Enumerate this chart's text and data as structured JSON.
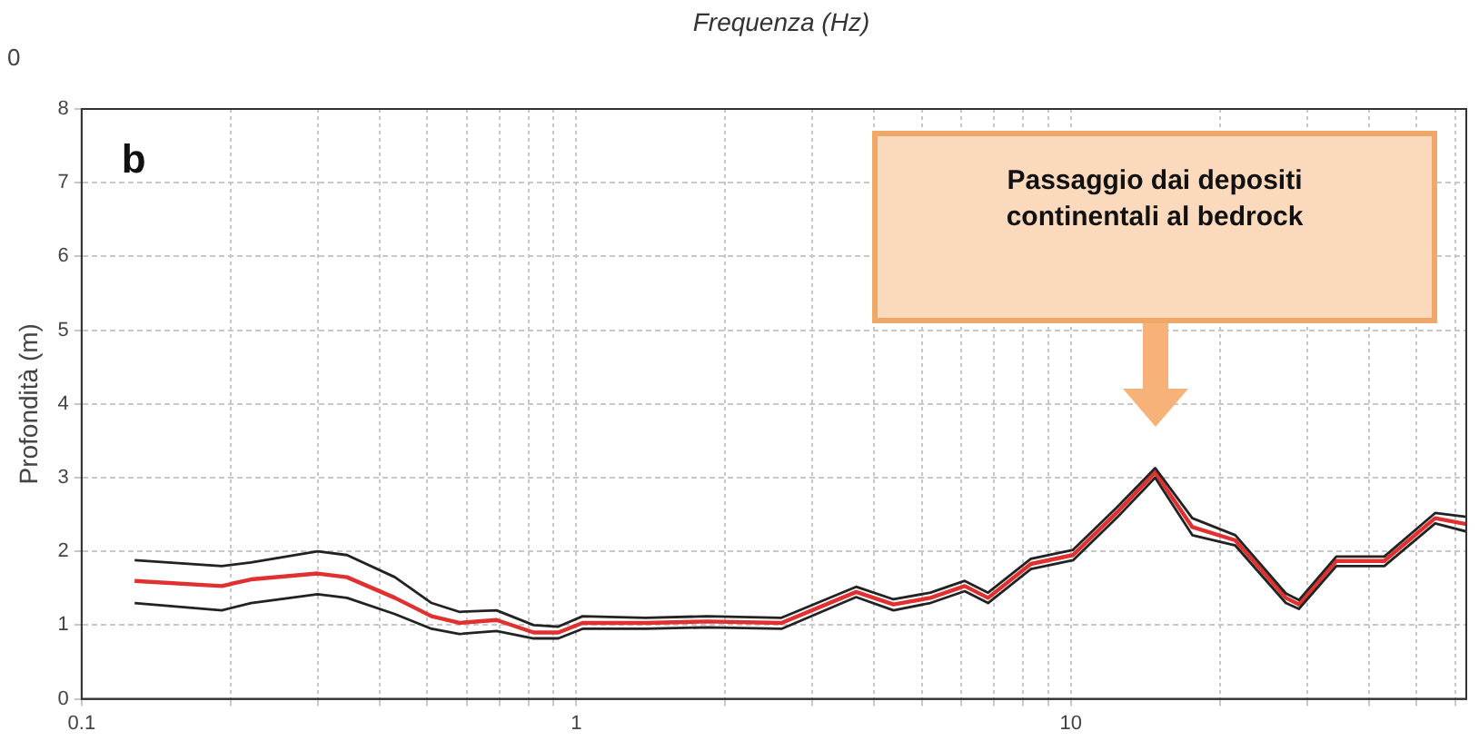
{
  "chart_data": {
    "type": "line",
    "xlabel": "Frequenza (Hz)",
    "ylabel": "Profondità (m)",
    "x": [
      0.128,
      0.192,
      0.22,
      0.3,
      0.344,
      0.43,
      0.51,
      0.58,
      0.69,
      0.82,
      0.92,
      1.03,
      1.38,
      1.84,
      2.6,
      3.68,
      4.38,
      5.2,
      6.1,
      6.8,
      8.3,
      10.1,
      12.4,
      14.8,
      17.6,
      21.5,
      27.2,
      28.9,
      34.4,
      43,
      54.5,
      63
    ],
    "series": [
      {
        "color": "#222222",
        "values": [
          1.88,
          1.8,
          1.85,
          2.0,
          1.95,
          1.65,
          1.3,
          1.18,
          1.2,
          1.0,
          0.98,
          1.12,
          1.1,
          1.12,
          1.1,
          1.52,
          1.35,
          1.44,
          1.6,
          1.44,
          1.9,
          2.02,
          2.6,
          3.13,
          2.45,
          2.22,
          1.43,
          1.34,
          1.93,
          1.93,
          2.52,
          2.47
        ]
      },
      {
        "color": "#222222",
        "values": [
          1.3,
          1.2,
          1.3,
          1.42,
          1.37,
          1.15,
          0.95,
          0.88,
          0.92,
          0.82,
          0.82,
          0.95,
          0.95,
          0.97,
          0.95,
          1.38,
          1.2,
          1.3,
          1.46,
          1.3,
          1.76,
          1.88,
          2.46,
          3.0,
          2.22,
          2.08,
          1.3,
          1.22,
          1.8,
          1.8,
          2.38,
          2.27
        ]
      },
      {
        "color": "#e03030",
        "values": [
          1.6,
          1.53,
          1.62,
          1.7,
          1.65,
          1.37,
          1.12,
          1.03,
          1.07,
          0.9,
          0.9,
          1.03,
          1.03,
          1.05,
          1.03,
          1.45,
          1.28,
          1.37,
          1.53,
          1.37,
          1.83,
          1.95,
          2.53,
          3.07,
          2.33,
          2.15,
          1.37,
          1.28,
          1.87,
          1.87,
          2.45,
          2.37
        ]
      }
    ],
    "log": "x",
    "xlim": [
      0.1,
      63
    ],
    "xticks": [
      0.1,
      {
        "value": 0.2,
        "label": null
      },
      {
        "value": 0.3,
        "label": null
      },
      {
        "value": 0.4,
        "label": null
      },
      {
        "value": 0.5,
        "label": null
      },
      {
        "value": 0.6,
        "label": null
      },
      {
        "value": 0.7,
        "label": null
      },
      {
        "value": 0.8,
        "label": null
      },
      {
        "value": 0.9,
        "label": null
      },
      1,
      {
        "value": 2,
        "label": null
      },
      {
        "value": 3,
        "label": null
      },
      {
        "value": 4,
        "label": null
      },
      {
        "value": 5,
        "label": null
      },
      {
        "value": 6,
        "label": null
      },
      {
        "value": 7,
        "label": null
      },
      {
        "value": 8,
        "label": null
      },
      {
        "value": 9,
        "label": null
      },
      10,
      {
        "value": 20,
        "label": null
      },
      {
        "value": 30,
        "label": null
      },
      {
        "value": 40,
        "label": null
      },
      {
        "value": 50,
        "label": null
      },
      {
        "value": 60,
        "label": null
      }
    ],
    "ylim": [
      0,
      8
    ],
    "yticks": [
      0,
      1,
      2,
      3,
      4,
      5,
      6,
      7,
      8
    ],
    "grid": true,
    "line_style": "solid",
    "marker": "none",
    "annotations": [
      "0",
      "b",
      "Passaggio dai depositi continentali al bedrock"
    ]
  }
}
